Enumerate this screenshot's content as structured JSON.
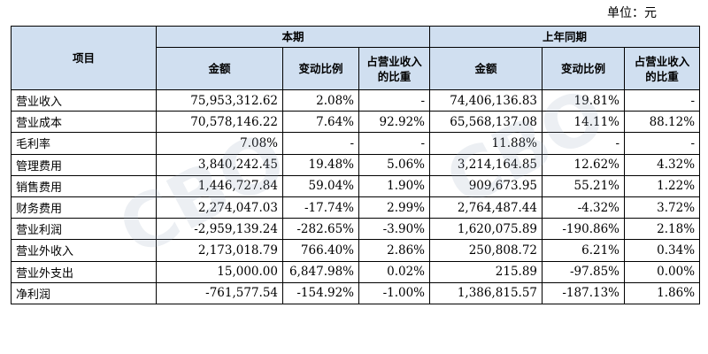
{
  "unit_label": "单位：元",
  "header": {
    "item": "项目",
    "current_period": "本期",
    "prior_period": "上年同期",
    "amount": "金额",
    "change_ratio": "变动比例",
    "share_of_revenue": "占营业收入的比重"
  },
  "rows": [
    {
      "name": "营业收入",
      "cur_amount": "75,953,312.62",
      "cur_change": "2.08%",
      "cur_share": "-",
      "prev_amount": "74,406,136.83",
      "prev_change": "19.81%",
      "prev_share": "-"
    },
    {
      "name": "营业成本",
      "cur_amount": "70,578,146.22",
      "cur_change": "7.64%",
      "cur_share": "92.92%",
      "prev_amount": "65,568,137.08",
      "prev_change": "14.11%",
      "prev_share": "88.12%"
    },
    {
      "name": "毛利率",
      "cur_amount": "7.08%",
      "cur_change": "-",
      "cur_share": "-",
      "prev_amount": "11.88%",
      "prev_change": "-",
      "prev_share": "-"
    },
    {
      "name": "管理费用",
      "cur_amount": "3,840,242.45",
      "cur_change": "19.48%",
      "cur_share": "5.06%",
      "prev_amount": "3,214,164.85",
      "prev_change": "12.62%",
      "prev_share": "4.32%"
    },
    {
      "name": "销售费用",
      "cur_amount": "1,446,727.84",
      "cur_change": "59.04%",
      "cur_share": "1.90%",
      "prev_amount": "909,673.95",
      "prev_change": "55.21%",
      "prev_share": "1.22%"
    },
    {
      "name": "财务费用",
      "cur_amount": "2,274,047.03",
      "cur_change": "-17.74%",
      "cur_share": "2.99%",
      "prev_amount": "2,764,487.44",
      "prev_change": "-4.32%",
      "prev_share": "3.72%"
    },
    {
      "name": "营业利润",
      "cur_amount": "-2,959,139.24",
      "cur_change": "-282.65%",
      "cur_share": "-3.90%",
      "prev_amount": "1,620,075.89",
      "prev_change": "-190.86%",
      "prev_share": "2.18%"
    },
    {
      "name": "营业外收入",
      "cur_amount": "2,173,018.79",
      "cur_change": "766.40%",
      "cur_share": "2.86%",
      "prev_amount": "250,808.72",
      "prev_change": "6.21%",
      "prev_share": "0.34%"
    },
    {
      "name": "营业外支出",
      "cur_amount": "15,000.00",
      "cur_change": "6,847.98%",
      "cur_share": "0.02%",
      "prev_amount": "215.89",
      "prev_change": "-97.85%",
      "prev_share": "0.00%"
    },
    {
      "name": "净利润",
      "cur_amount": "-761,577.54",
      "cur_change": "-154.92%",
      "cur_share": "-1.00%",
      "prev_amount": "1,386,815.57",
      "prev_change": "-187.13%",
      "prev_share": "1.86%"
    }
  ],
  "watermark": {
    "left": "CBO",
    "right": "CBO"
  }
}
